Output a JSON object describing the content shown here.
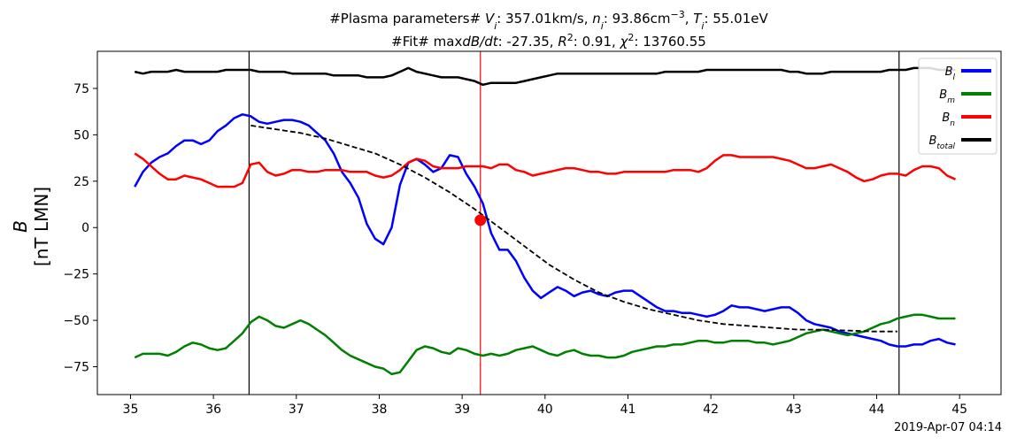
{
  "chart_data": {
    "type": "line",
    "title_lines": [
      {
        "parts": [
          {
            "t": "#Plasma parameters# "
          },
          {
            "t": "V",
            "style": "italic"
          },
          {
            "t": "i",
            "style": "sub-italic"
          },
          {
            "t": ": 357.01km/s, "
          },
          {
            "t": "n",
            "style": "italic"
          },
          {
            "t": "i",
            "style": "sub-italic"
          },
          {
            "t": ": 93.86cm"
          },
          {
            "t": "−3",
            "style": "sup"
          },
          {
            "t": ", "
          },
          {
            "t": "T",
            "style": "italic"
          },
          {
            "t": "i",
            "style": "sub-italic"
          },
          {
            "t": ": 55.01eV"
          }
        ]
      },
      {
        "parts": [
          {
            "t": "#Fit# max"
          },
          {
            "t": "dB/dt",
            "style": "italic"
          },
          {
            "t": ": -27.35, "
          },
          {
            "t": "R",
            "style": "italic"
          },
          {
            "t": "2",
            "style": "sup"
          },
          {
            "t": ": 0.91, "
          },
          {
            "t": "χ",
            "style": "italic"
          },
          {
            "t": "2",
            "style": "sup"
          },
          {
            "t": ": 13760.55"
          }
        ]
      }
    ],
    "ylabel_top": "B",
    "ylabel_bottom": "[nT LMN]",
    "timestamp": "2019-Apr-07 04:14",
    "xlim": [
      34.6,
      45.5
    ],
    "ylim": [
      -90,
      95
    ],
    "x_ticks": [
      35,
      36,
      37,
      38,
      39,
      40,
      41,
      42,
      43,
      44,
      45
    ],
    "x_tick_labels": [
      "35",
      "36",
      "37",
      "38",
      "39",
      "40",
      "41",
      "42",
      "43",
      "44",
      "45"
    ],
    "y_ticks": [
      75,
      50,
      25,
      0,
      -25,
      -50,
      -75
    ],
    "y_tick_labels": [
      "75",
      "50",
      "25",
      "0",
      "−25",
      "−50",
      "−75"
    ],
    "grid": false,
    "legend_position": "top-right",
    "colors": {
      "Bl": "#0000ff",
      "Bm": "#008000",
      "Bn": "#ff0000",
      "Btotal": "#000000",
      "fit": "#000000",
      "center": "#ff0000"
    },
    "x": [
      35.05,
      35.15,
      35.25,
      35.35,
      35.45,
      35.55,
      35.65,
      35.75,
      35.85,
      35.95,
      36.05,
      36.15,
      36.25,
      36.35,
      36.45,
      36.55,
      36.65,
      36.75,
      36.85,
      36.95,
      37.05,
      37.15,
      37.25,
      37.35,
      37.45,
      37.55,
      37.65,
      37.75,
      37.85,
      37.95,
      38.05,
      38.15,
      38.25,
      38.35,
      38.45,
      38.55,
      38.65,
      38.75,
      38.85,
      38.95,
      39.05,
      39.15,
      39.25,
      39.35,
      39.45,
      39.55,
      39.65,
      39.75,
      39.85,
      39.95,
      40.05,
      40.15,
      40.25,
      40.35,
      40.45,
      40.55,
      40.65,
      40.75,
      40.85,
      40.95,
      41.05,
      41.15,
      41.25,
      41.35,
      41.45,
      41.55,
      41.65,
      41.75,
      41.85,
      41.95,
      42.05,
      42.15,
      42.25,
      42.35,
      42.45,
      42.55,
      42.65,
      42.75,
      42.85,
      42.95,
      43.05,
      43.15,
      43.25,
      43.35,
      43.45,
      43.55,
      43.65,
      43.75,
      43.85,
      43.95,
      44.05,
      44.15,
      44.25,
      44.35,
      44.45,
      44.55,
      44.65,
      44.75,
      44.85,
      44.95
    ],
    "series": [
      {
        "name": "B_l",
        "key": "Bl",
        "values": [
          22,
          30,
          35,
          38,
          40,
          44,
          47,
          47,
          45,
          47,
          52,
          55,
          59,
          61,
          60,
          57,
          56,
          57,
          58,
          58,
          57,
          55,
          51,
          47,
          40,
          30,
          24,
          16,
          2,
          -6,
          -9,
          0,
          23,
          35,
          37,
          34,
          30,
          32,
          39,
          38,
          29,
          22,
          13,
          -3,
          -12,
          -12,
          -18,
          -27,
          -34,
          -38,
          -35,
          -32,
          -34,
          -37,
          -35,
          -34,
          -36,
          -37,
          -35,
          -34,
          -34,
          -37,
          -40,
          -43,
          -45,
          -45,
          -46,
          -46,
          -47,
          -48,
          -47,
          -45,
          -42,
          -43,
          -43,
          -44,
          -45,
          -44,
          -43,
          -43,
          -46,
          -50,
          -52,
          -53,
          -54,
          -56,
          -57,
          -58,
          -59,
          -60,
          -61,
          -63,
          -64,
          -64,
          -63,
          -63,
          -61,
          -60,
          -62,
          -63
        ]
      },
      {
        "name": "B_m",
        "key": "Bm",
        "values": [
          -70,
          -68,
          -68,
          -68,
          -69,
          -67,
          -64,
          -62,
          -63,
          -65,
          -66,
          -65,
          -61,
          -57,
          -51,
          -48,
          -50,
          -53,
          -54,
          -52,
          -50,
          -52,
          -55,
          -58,
          -62,
          -66,
          -69,
          -71,
          -73,
          -75,
          -76,
          -79,
          -78,
          -72,
          -66,
          -64,
          -65,
          -67,
          -68,
          -65,
          -66,
          -68,
          -69,
          -68,
          -69,
          -68,
          -66,
          -65,
          -64,
          -66,
          -68,
          -69,
          -67,
          -66,
          -68,
          -69,
          -69,
          -70,
          -70,
          -69,
          -67,
          -66,
          -65,
          -64,
          -64,
          -63,
          -63,
          -62,
          -61,
          -61,
          -62,
          -62,
          -61,
          -61,
          -61,
          -62,
          -62,
          -63,
          -62,
          -61,
          -59,
          -57,
          -56,
          -55,
          -56,
          -57,
          -58,
          -57,
          -56,
          -54,
          -52,
          -51,
          -49,
          -48,
          -47,
          -47,
          -48,
          -49,
          -49,
          -49
        ]
      },
      {
        "name": "B_n",
        "key": "Bn",
        "values": [
          40,
          37,
          33,
          29,
          26,
          26,
          28,
          27,
          26,
          24,
          22,
          22,
          22,
          24,
          34,
          35,
          30,
          28,
          29,
          31,
          31,
          30,
          30,
          31,
          31,
          31,
          30,
          30,
          30,
          28,
          27,
          28,
          31,
          35,
          37,
          36,
          33,
          32,
          32,
          32,
          33,
          33,
          33,
          32,
          34,
          34,
          31,
          30,
          28,
          29,
          30,
          31,
          32,
          32,
          31,
          30,
          30,
          29,
          29,
          30,
          30,
          30,
          30,
          30,
          30,
          31,
          31,
          31,
          30,
          32,
          36,
          39,
          39,
          38,
          38,
          38,
          38,
          38,
          37,
          36,
          34,
          32,
          32,
          33,
          34,
          32,
          30,
          27,
          25,
          26,
          28,
          29,
          29,
          28,
          31,
          33,
          33,
          32,
          28,
          26
        ]
      },
      {
        "name": "B_total",
        "key": "Btotal",
        "values": [
          84,
          83,
          84,
          84,
          84,
          85,
          84,
          84,
          84,
          84,
          84,
          85,
          85,
          85,
          85,
          84,
          84,
          84,
          84,
          83,
          83,
          83,
          83,
          83,
          82,
          82,
          82,
          82,
          81,
          81,
          81,
          82,
          84,
          86,
          84,
          83,
          82,
          81,
          81,
          81,
          80,
          79,
          77,
          78,
          78,
          78,
          78,
          79,
          80,
          81,
          82,
          83,
          83,
          83,
          83,
          83,
          83,
          83,
          83,
          83,
          83,
          83,
          83,
          83,
          84,
          84,
          84,
          84,
          84,
          85,
          85,
          85,
          85,
          85,
          85,
          85,
          85,
          85,
          85,
          84,
          84,
          83,
          83,
          83,
          84,
          84,
          84,
          84,
          84,
          84,
          84,
          85,
          85,
          85,
          86,
          86,
          86,
          85,
          85,
          85
        ]
      }
    ],
    "legend": [
      {
        "key": "Bl",
        "base": "B",
        "sub": "l"
      },
      {
        "key": "Bm",
        "base": "B",
        "sub": "m"
      },
      {
        "key": "Bn",
        "base": "B",
        "sub": "n"
      },
      {
        "key": "Btotal",
        "base": "B",
        "sub": "total"
      }
    ],
    "fit_curve": {
      "x": [
        36.45,
        36.75,
        37.05,
        37.35,
        37.65,
        37.95,
        38.25,
        38.55,
        38.85,
        39.15,
        39.45,
        39.75,
        40.05,
        40.35,
        40.65,
        40.95,
        41.25,
        41.55,
        41.85,
        42.15,
        42.45,
        42.75,
        43.05,
        43.35,
        43.65,
        43.95,
        44.25
      ],
      "values": [
        55,
        53,
        51,
        48,
        44,
        40,
        34,
        27,
        19,
        10,
        0,
        -10,
        -20,
        -28,
        -35,
        -40,
        -44,
        -47,
        -50,
        -52,
        -53,
        -54,
        -55,
        -55,
        -55.5,
        -56,
        -56
      ]
    },
    "vertical_lines": [
      {
        "x": 36.43,
        "color": "#000000"
      },
      {
        "x": 39.22,
        "color": "#ff0000"
      },
      {
        "x": 44.27,
        "color": "#000000"
      }
    ],
    "center_point": {
      "x": 39.22,
      "y": 4
    }
  }
}
